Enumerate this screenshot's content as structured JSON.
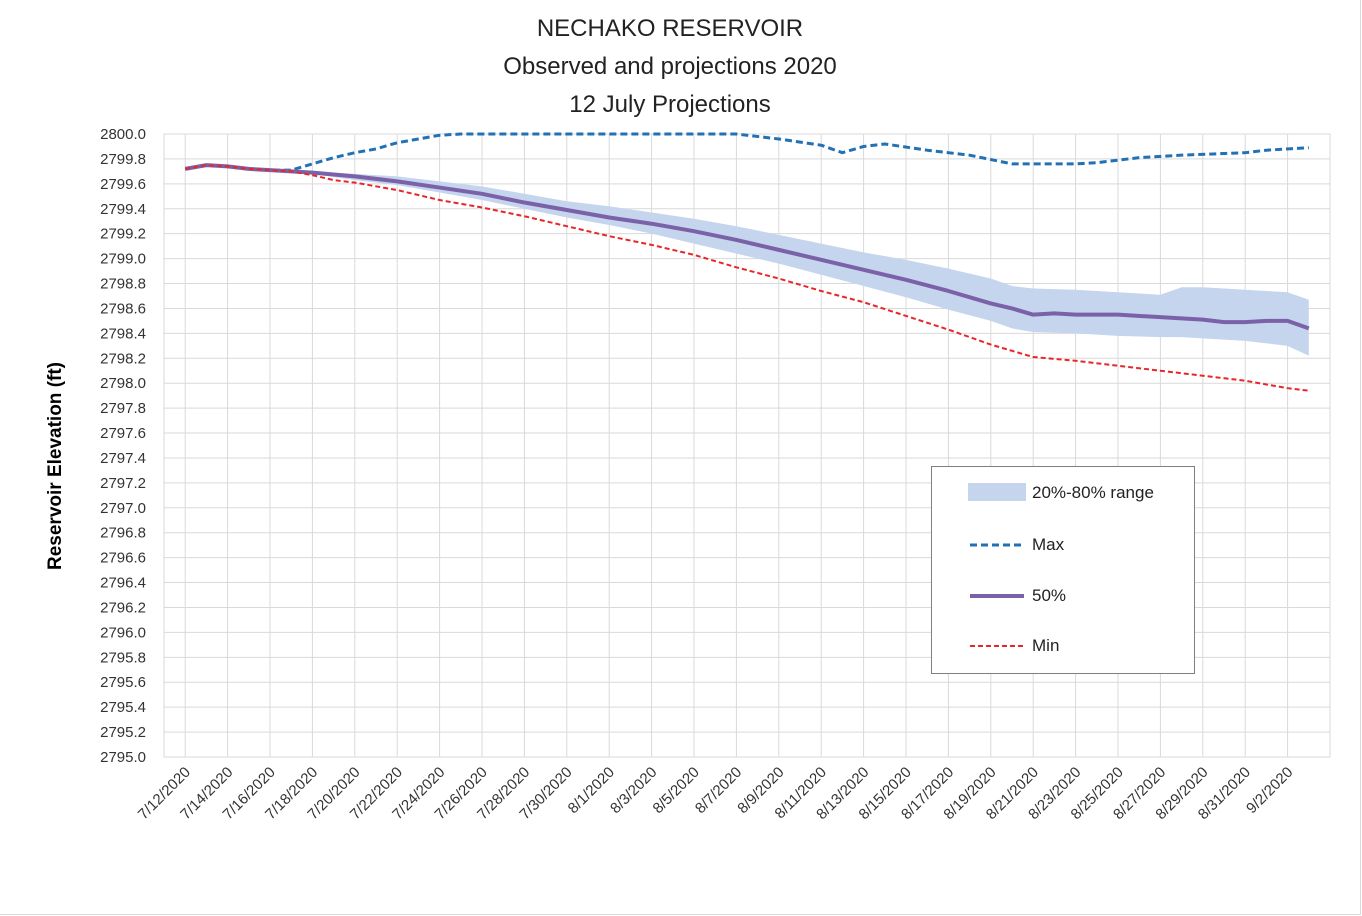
{
  "chart_data": {
    "type": "line",
    "title": "NECHAKO RESERVOIR",
    "subtitle_lines": [
      "Observed and projections 2020",
      "12 July Projections"
    ],
    "xlabel": "",
    "ylabel": "Reservoir Elevation (ft)",
    "ylim": [
      2795.0,
      2800.0
    ],
    "ytick_step": 0.2,
    "x_range": [
      "2020-07-11",
      "2020-09-04"
    ],
    "xtick_labels": [
      "7/12/2020",
      "7/14/2020",
      "7/16/2020",
      "7/18/2020",
      "7/20/2020",
      "7/22/2020",
      "7/24/2020",
      "7/26/2020",
      "7/28/2020",
      "7/30/2020",
      "8/1/2020",
      "8/3/2020",
      "8/5/2020",
      "8/7/2020",
      "8/9/2020",
      "8/11/2020",
      "8/13/2020",
      "8/15/2020",
      "8/17/2020",
      "8/19/2020",
      "8/21/2020",
      "8/23/2020",
      "8/25/2020",
      "8/27/2020",
      "8/29/2020",
      "8/31/2020",
      "9/2/2020"
    ],
    "grid": true,
    "legend_position": "bottom-right",
    "band": {
      "name": "20%-80% range",
      "color": "#c5d5ee",
      "points": [
        {
          "x": "2020-07-17",
          "low": 2799.7,
          "high": 2799.71
        },
        {
          "x": "2020-07-18",
          "low": 2799.68,
          "high": 2799.7
        },
        {
          "x": "2020-07-20",
          "low": 2799.63,
          "high": 2799.68
        },
        {
          "x": "2020-07-22",
          "low": 2799.59,
          "high": 2799.66
        },
        {
          "x": "2020-07-24",
          "low": 2799.53,
          "high": 2799.62
        },
        {
          "x": "2020-07-26",
          "low": 2799.47,
          "high": 2799.58
        },
        {
          "x": "2020-07-28",
          "low": 2799.4,
          "high": 2799.52
        },
        {
          "x": "2020-07-30",
          "low": 2799.33,
          "high": 2799.46
        },
        {
          "x": "2020-08-01",
          "low": 2799.27,
          "high": 2799.42
        },
        {
          "x": "2020-08-03",
          "low": 2799.2,
          "high": 2799.37
        },
        {
          "x": "2020-08-05",
          "low": 2799.12,
          "high": 2799.32
        },
        {
          "x": "2020-08-07",
          "low": 2799.04,
          "high": 2799.26
        },
        {
          "x": "2020-08-09",
          "low": 2798.96,
          "high": 2799.19
        },
        {
          "x": "2020-08-11",
          "low": 2798.87,
          "high": 2799.12
        },
        {
          "x": "2020-08-13",
          "low": 2798.78,
          "high": 2799.05
        },
        {
          "x": "2020-08-15",
          "low": 2798.69,
          "high": 2798.99
        },
        {
          "x": "2020-08-17",
          "low": 2798.59,
          "high": 2798.92
        },
        {
          "x": "2020-08-19",
          "low": 2798.5,
          "high": 2798.84
        },
        {
          "x": "2020-08-20",
          "low": 2798.44,
          "high": 2798.78
        },
        {
          "x": "2020-08-21",
          "low": 2798.41,
          "high": 2798.76
        },
        {
          "x": "2020-08-23",
          "low": 2798.4,
          "high": 2798.75
        },
        {
          "x": "2020-08-25",
          "low": 2798.38,
          "high": 2798.73
        },
        {
          "x": "2020-08-27",
          "low": 2798.37,
          "high": 2798.71
        },
        {
          "x": "2020-08-28",
          "low": 2798.37,
          "high": 2798.77
        },
        {
          "x": "2020-08-29",
          "low": 2798.36,
          "high": 2798.77
        },
        {
          "x": "2020-08-31",
          "low": 2798.34,
          "high": 2798.75
        },
        {
          "x": "2020-09-02",
          "low": 2798.3,
          "high": 2798.73
        },
        {
          "x": "2020-09-03",
          "low": 2798.22,
          "high": 2798.67
        }
      ]
    },
    "series": [
      {
        "name": "Max",
        "color": "#2271b5",
        "style": "dashed",
        "points": [
          {
            "x": "2020-07-12",
            "y": 2799.72
          },
          {
            "x": "2020-07-13",
            "y": 2799.75
          },
          {
            "x": "2020-07-14",
            "y": 2799.74
          },
          {
            "x": "2020-07-15",
            "y": 2799.72
          },
          {
            "x": "2020-07-16",
            "y": 2799.71
          },
          {
            "x": "2020-07-17",
            "y": 2799.71
          },
          {
            "x": "2020-07-18",
            "y": 2799.76
          },
          {
            "x": "2020-07-19",
            "y": 2799.81
          },
          {
            "x": "2020-07-20",
            "y": 2799.85
          },
          {
            "x": "2020-07-21",
            "y": 2799.88
          },
          {
            "x": "2020-07-22",
            "y": 2799.93
          },
          {
            "x": "2020-07-23",
            "y": 2799.96
          },
          {
            "x": "2020-07-24",
            "y": 2799.99
          },
          {
            "x": "2020-07-25",
            "y": 2800.0
          },
          {
            "x": "2020-08-07",
            "y": 2800.0
          },
          {
            "x": "2020-08-09",
            "y": 2799.96
          },
          {
            "x": "2020-08-11",
            "y": 2799.91
          },
          {
            "x": "2020-08-12",
            "y": 2799.85
          },
          {
            "x": "2020-08-13",
            "y": 2799.9
          },
          {
            "x": "2020-08-14",
            "y": 2799.92
          },
          {
            "x": "2020-08-16",
            "y": 2799.87
          },
          {
            "x": "2020-08-18",
            "y": 2799.83
          },
          {
            "x": "2020-08-20",
            "y": 2799.76
          },
          {
            "x": "2020-08-23",
            "y": 2799.76
          },
          {
            "x": "2020-08-24",
            "y": 2799.77
          },
          {
            "x": "2020-08-26",
            "y": 2799.81
          },
          {
            "x": "2020-08-28",
            "y": 2799.83
          },
          {
            "x": "2020-08-31",
            "y": 2799.85
          },
          {
            "x": "2020-09-01",
            "y": 2799.87
          },
          {
            "x": "2020-09-03",
            "y": 2799.89
          }
        ]
      },
      {
        "name": "50%",
        "color": "#7b62a8",
        "style": "solid",
        "points": [
          {
            "x": "2020-07-12",
            "y": 2799.72
          },
          {
            "x": "2020-07-13",
            "y": 2799.75
          },
          {
            "x": "2020-07-14",
            "y": 2799.74
          },
          {
            "x": "2020-07-15",
            "y": 2799.72
          },
          {
            "x": "2020-07-16",
            "y": 2799.71
          },
          {
            "x": "2020-07-17",
            "y": 2799.7
          },
          {
            "x": "2020-07-18",
            "y": 2799.69
          },
          {
            "x": "2020-07-20",
            "y": 2799.66
          },
          {
            "x": "2020-07-22",
            "y": 2799.62
          },
          {
            "x": "2020-07-24",
            "y": 2799.57
          },
          {
            "x": "2020-07-26",
            "y": 2799.52
          },
          {
            "x": "2020-07-28",
            "y": 2799.45
          },
          {
            "x": "2020-07-30",
            "y": 2799.39
          },
          {
            "x": "2020-08-01",
            "y": 2799.33
          },
          {
            "x": "2020-08-03",
            "y": 2799.28
          },
          {
            "x": "2020-08-05",
            "y": 2799.22
          },
          {
            "x": "2020-08-07",
            "y": 2799.15
          },
          {
            "x": "2020-08-09",
            "y": 2799.07
          },
          {
            "x": "2020-08-11",
            "y": 2798.99
          },
          {
            "x": "2020-08-13",
            "y": 2798.91
          },
          {
            "x": "2020-08-15",
            "y": 2798.83
          },
          {
            "x": "2020-08-17",
            "y": 2798.74
          },
          {
            "x": "2020-08-19",
            "y": 2798.64
          },
          {
            "x": "2020-08-20",
            "y": 2798.6
          },
          {
            "x": "2020-08-21",
            "y": 2798.55
          },
          {
            "x": "2020-08-22",
            "y": 2798.56
          },
          {
            "x": "2020-08-23",
            "y": 2798.55
          },
          {
            "x": "2020-08-25",
            "y": 2798.55
          },
          {
            "x": "2020-08-27",
            "y": 2798.53
          },
          {
            "x": "2020-08-29",
            "y": 2798.51
          },
          {
            "x": "2020-08-30",
            "y": 2798.49
          },
          {
            "x": "2020-08-31",
            "y": 2798.49
          },
          {
            "x": "2020-09-01",
            "y": 2798.5
          },
          {
            "x": "2020-09-02",
            "y": 2798.5
          },
          {
            "x": "2020-09-03",
            "y": 2798.44
          }
        ]
      },
      {
        "name": "Min",
        "color": "#e8262a",
        "style": "dashed",
        "points": [
          {
            "x": "2020-07-12",
            "y": 2799.72
          },
          {
            "x": "2020-07-13",
            "y": 2799.75
          },
          {
            "x": "2020-07-14",
            "y": 2799.74
          },
          {
            "x": "2020-07-15",
            "y": 2799.72
          },
          {
            "x": "2020-07-16",
            "y": 2799.71
          },
          {
            "x": "2020-07-17",
            "y": 2799.7
          },
          {
            "x": "2020-07-18",
            "y": 2799.67
          },
          {
            "x": "2020-07-19",
            "y": 2799.63
          },
          {
            "x": "2020-07-20",
            "y": 2799.61
          },
          {
            "x": "2020-07-22",
            "y": 2799.55
          },
          {
            "x": "2020-07-24",
            "y": 2799.47
          },
          {
            "x": "2020-07-26",
            "y": 2799.41
          },
          {
            "x": "2020-07-28",
            "y": 2799.34
          },
          {
            "x": "2020-07-30",
            "y": 2799.26
          },
          {
            "x": "2020-08-01",
            "y": 2799.18
          },
          {
            "x": "2020-08-03",
            "y": 2799.11
          },
          {
            "x": "2020-08-05",
            "y": 2799.03
          },
          {
            "x": "2020-08-07",
            "y": 2798.93
          },
          {
            "x": "2020-08-09",
            "y": 2798.84
          },
          {
            "x": "2020-08-11",
            "y": 2798.74
          },
          {
            "x": "2020-08-13",
            "y": 2798.65
          },
          {
            "x": "2020-08-15",
            "y": 2798.54
          },
          {
            "x": "2020-08-17",
            "y": 2798.43
          },
          {
            "x": "2020-08-19",
            "y": 2798.31
          },
          {
            "x": "2020-08-21",
            "y": 2798.21
          },
          {
            "x": "2020-08-23",
            "y": 2798.18
          },
          {
            "x": "2020-08-25",
            "y": 2798.14
          },
          {
            "x": "2020-08-27",
            "y": 2798.1
          },
          {
            "x": "2020-08-29",
            "y": 2798.06
          },
          {
            "x": "2020-08-31",
            "y": 2798.02
          },
          {
            "x": "2020-09-02",
            "y": 2797.96
          },
          {
            "x": "2020-09-03",
            "y": 2797.94
          }
        ]
      }
    ]
  }
}
